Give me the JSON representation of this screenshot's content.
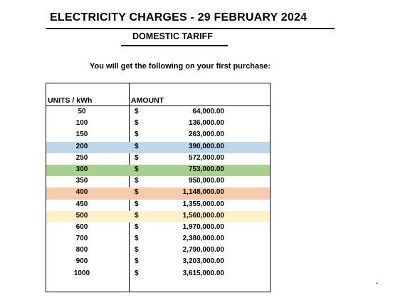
{
  "title": "ELECTRICITY CHARGES - 29 FEBRUARY 2024",
  "subtitle": "DOMESTIC TARIFF",
  "intro": "You will get the following on your first purchase:",
  "table": {
    "headers": {
      "units": "UNITS / kWh",
      "amount": "AMOUNT"
    },
    "currency": "$",
    "rows": [
      {
        "units": "50",
        "amount": "64,000.00",
        "highlight": ""
      },
      {
        "units": "100",
        "amount": "136,000.00",
        "highlight": ""
      },
      {
        "units": "150",
        "amount": "263,000.00",
        "highlight": ""
      },
      {
        "units": "200",
        "amount": "390,000.00",
        "highlight": "#bdd7ee"
      },
      {
        "units": "250",
        "amount": "572,000.00",
        "highlight": ""
      },
      {
        "units": "300",
        "amount": "753,000.00",
        "highlight": "#a9d08e"
      },
      {
        "units": "350",
        "amount": "950,000.00",
        "highlight": ""
      },
      {
        "units": "400",
        "amount": "1,148,000.00",
        "highlight": "#f8cbad"
      },
      {
        "units": "450",
        "amount": "1,355,000.00",
        "highlight": ""
      },
      {
        "units": "500",
        "amount": "1,560,000.00",
        "highlight": "#fff2cc"
      },
      {
        "units": "600",
        "amount": "1,970,000.00",
        "highlight": ""
      },
      {
        "units": "700",
        "amount": "2,380,000.00",
        "highlight": ""
      },
      {
        "units": "800",
        "amount": "2,790,000.00",
        "highlight": ""
      },
      {
        "units": "900",
        "amount": "3,203,000.00",
        "highlight": ""
      },
      {
        "units": "1000",
        "amount": "3,615,000.00",
        "highlight": ""
      }
    ]
  },
  "corner_mark": "-"
}
